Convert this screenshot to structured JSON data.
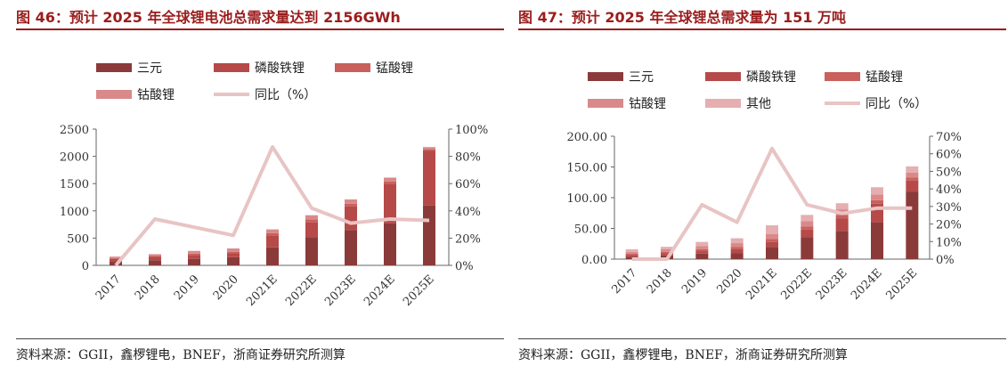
{
  "left": {
    "title": "图 46：预计 2025 年全球锂电池总需求量达到 2156GWh",
    "source": "资料来源：GGII，鑫椤锂电，BNEF，浙商证券研究所测算",
    "legend": [
      "三元",
      "磷酸铁锂",
      "锰酸锂",
      "钴酸锂",
      "同比（%）"
    ]
  },
  "right": {
    "title": "图 47：预计 2025 年全球锂总需求量为 151 万吨",
    "source": "资料来源：GGII，鑫椤锂电，BNEF，浙商证券研究所测算",
    "legend": [
      "三元",
      "磷酸铁锂",
      "锰酸锂",
      "钴酸锂",
      "其他",
      "同比（%）"
    ]
  },
  "colors": {
    "ternary": "#8b3a3a",
    "lfp": "#b54a48",
    "lmo": "#c9605c",
    "lco": "#d9898a",
    "other": "#e5aeb0",
    "yoy": "#e8c4c4",
    "title": "#9b1c1c"
  },
  "chart_data": [
    {
      "type": "bar",
      "stacked": true,
      "categories": [
        "2017",
        "2018",
        "2019",
        "2020",
        "2021E",
        "2022E",
        "2023E",
        "2024E",
        "2025E"
      ],
      "series": [
        {
          "name": "三元",
          "values": [
            65,
            95,
            120,
            150,
            330,
            520,
            650,
            770,
            1100
          ]
        },
        {
          "name": "磷酸铁锂",
          "values": [
            55,
            60,
            70,
            70,
            220,
            270,
            430,
            730,
            1000
          ]
        },
        {
          "name": "锰酸锂",
          "values": [
            15,
            20,
            25,
            30,
            40,
            50,
            50,
            40,
            30
          ]
        },
        {
          "name": "钴酸锂",
          "values": [
            25,
            30,
            50,
            60,
            70,
            80,
            80,
            70,
            40
          ]
        }
      ],
      "line": {
        "name": "同比（%）",
        "axis": "right",
        "values": [
          0,
          34,
          null,
          22,
          87,
          42,
          31,
          34,
          33
        ]
      },
      "ylim": [
        0,
        2500
      ],
      "yticks": [
        "0",
        "500",
        "1000",
        "1500",
        "2000",
        "2500"
      ],
      "y2lim": [
        0,
        100
      ],
      "y2ticks": [
        "0%",
        "20%",
        "40%",
        "60%",
        "80%",
        "100%"
      ],
      "legend_position": "top"
    },
    {
      "type": "bar",
      "stacked": true,
      "categories": [
        "2017",
        "2018",
        "2019",
        "2020",
        "2021E",
        "2022E",
        "2023E",
        "2024E",
        "2025E"
      ],
      "series": [
        {
          "name": "三元",
          "values": [
            4,
            6,
            9,
            10,
            20,
            36,
            46,
            60,
            110
          ]
        },
        {
          "name": "磷酸铁锂",
          "values": [
            3,
            4,
            4,
            6,
            8,
            12,
            20,
            30,
            18
          ]
        },
        {
          "name": "锰酸锂",
          "values": [
            2,
            2,
            3,
            4,
            5,
            5,
            6,
            6,
            5
          ]
        },
        {
          "name": "钴酸锂",
          "values": [
            3,
            4,
            5,
            6,
            8,
            9,
            9,
            9,
            8
          ]
        },
        {
          "name": "其他",
          "values": [
            4,
            4,
            7,
            8,
            14,
            10,
            10,
            12,
            10
          ]
        }
      ],
      "line": {
        "name": "同比（%）",
        "axis": "right",
        "values": [
          0,
          0,
          31,
          21,
          63,
          31,
          26,
          29,
          29
        ]
      },
      "ylim": [
        0,
        200
      ],
      "yticks": [
        "0.00",
        "50.00",
        "100.00",
        "150.00",
        "200.00"
      ],
      "y2lim": [
        0,
        70
      ],
      "y2ticks": [
        "0%",
        "10%",
        "20%",
        "30%",
        "40%",
        "50%",
        "60%",
        "70%"
      ],
      "legend_position": "top"
    }
  ]
}
